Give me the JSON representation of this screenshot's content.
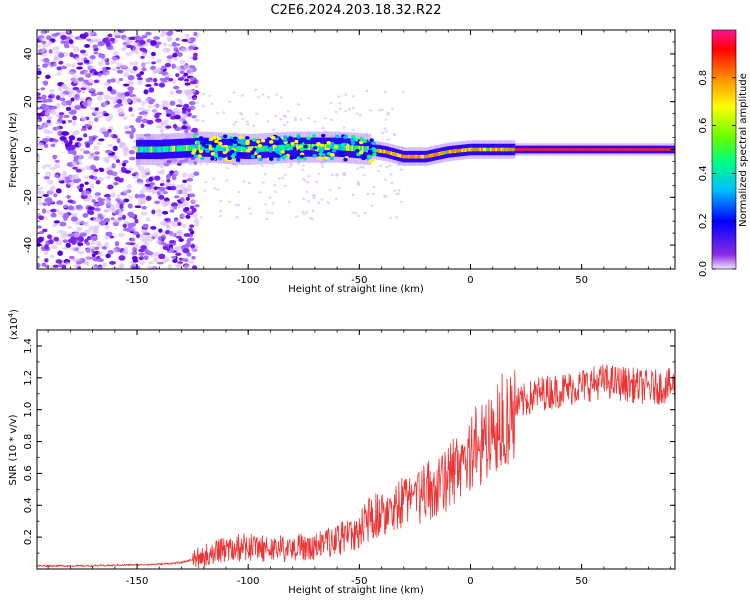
{
  "title": "C2E6.2024.203.18.32.R22",
  "chart_data": [
    {
      "type": "heatmap",
      "title": "C2E6.2024.203.18.32.R22",
      "xlabel": "Height of straight line (km)",
      "ylabel": "Frequency (Hz)",
      "xlim": [
        -195,
        92
      ],
      "ylim": [
        -50,
        50
      ],
      "xticks": [
        -150,
        -100,
        -50,
        0,
        50
      ],
      "yticks": [
        -40,
        -20,
        0,
        20,
        40
      ],
      "colorbar": {
        "label": "Normalized spectral amplitude",
        "range": [
          0,
          1
        ],
        "ticks": [
          0.0,
          0.2,
          0.4,
          0.6,
          0.8
        ],
        "colormap": [
          "#6a00ff",
          "#0000ff",
          "#00bfff",
          "#00ff00",
          "#ffff00",
          "#ff8c00",
          "#ff0000",
          "#ff1493"
        ]
      },
      "ridge": {
        "x": [
          -140,
          -120,
          -100,
          -80,
          -60,
          -45,
          -38,
          -30,
          -20,
          -10,
          0,
          10,
          20,
          40,
          60,
          80,
          92
        ],
        "y": [
          0,
          1,
          0,
          1,
          1,
          0,
          -1,
          -3,
          -3,
          -1,
          0,
          0,
          0,
          0,
          0,
          0,
          0
        ]
      }
    },
    {
      "type": "line",
      "xlabel": "Height of straight line (km)",
      "ylabel": "SNR (10 * v/v)",
      "yexponent": "(x10",
      "yexponent_power": "4",
      "yexponent_close": ")",
      "xlim": [
        -195,
        92
      ],
      "ylim": [
        0,
        1.5
      ],
      "xticks": [
        -150,
        -100,
        -50,
        0,
        50
      ],
      "yticks": [
        0.2,
        0.4,
        0.6,
        0.8,
        1.0,
        1.2,
        1.4
      ],
      "series": [
        {
          "color": "#ee3333",
          "x": [
            -195,
            -170,
            -140,
            -130,
            -120,
            -110,
            -100,
            -90,
            -80,
            -70,
            -60,
            -50,
            -45,
            -40,
            -30,
            -20,
            -10,
            0,
            10,
            20,
            30,
            40,
            50,
            60,
            70,
            80,
            92
          ],
          "y": [
            0.02,
            0.02,
            0.03,
            0.04,
            0.08,
            0.12,
            0.14,
            0.12,
            0.13,
            0.14,
            0.18,
            0.25,
            0.32,
            0.36,
            0.42,
            0.48,
            0.58,
            0.75,
            0.85,
            1.02,
            1.1,
            1.12,
            1.15,
            1.18,
            1.16,
            1.14,
            1.15
          ]
        }
      ]
    }
  ]
}
